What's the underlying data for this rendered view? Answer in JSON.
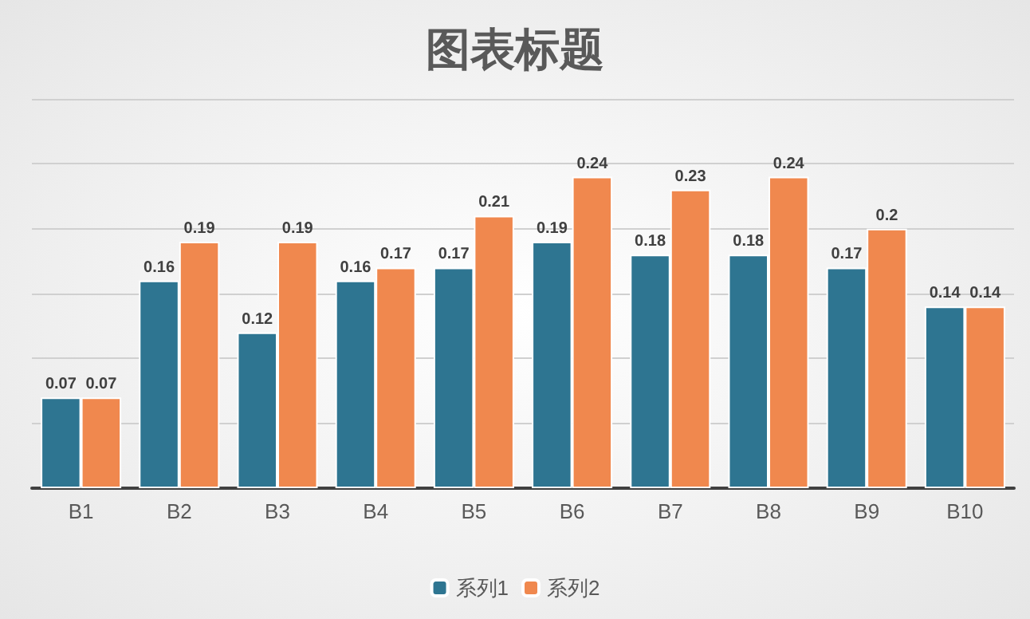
{
  "chart_data": {
    "type": "bar",
    "title": "图表标题",
    "categories": [
      "B1",
      "B2",
      "B3",
      "B4",
      "B5",
      "B6",
      "B7",
      "B8",
      "B9",
      "B10"
    ],
    "series": [
      {
        "name": "系列1",
        "color": "#2e7591",
        "values": [
          0.07,
          0.16,
          0.12,
          0.16,
          0.17,
          0.19,
          0.18,
          0.18,
          0.17,
          0.14
        ]
      },
      {
        "name": "系列2",
        "color": "#f0884e",
        "values": [
          0.07,
          0.19,
          0.19,
          0.17,
          0.21,
          0.24,
          0.23,
          0.24,
          0.2,
          0.14
        ]
      }
    ],
    "ylim": [
      0,
      0.3
    ],
    "yticks": [
      {
        "value": 0,
        "label": null
      },
      {
        "value": 0.05,
        "label": null
      },
      {
        "value": 0.1,
        "label": null
      },
      {
        "value": 0.15,
        "label": null
      },
      {
        "value": 0.2,
        "label": null
      },
      {
        "value": 0.25,
        "label": null
      },
      {
        "value": 0.3,
        "label": null
      }
    ],
    "tick_labels": "x",
    "grid": "y",
    "legend": "bottom",
    "data_labels": true
  }
}
